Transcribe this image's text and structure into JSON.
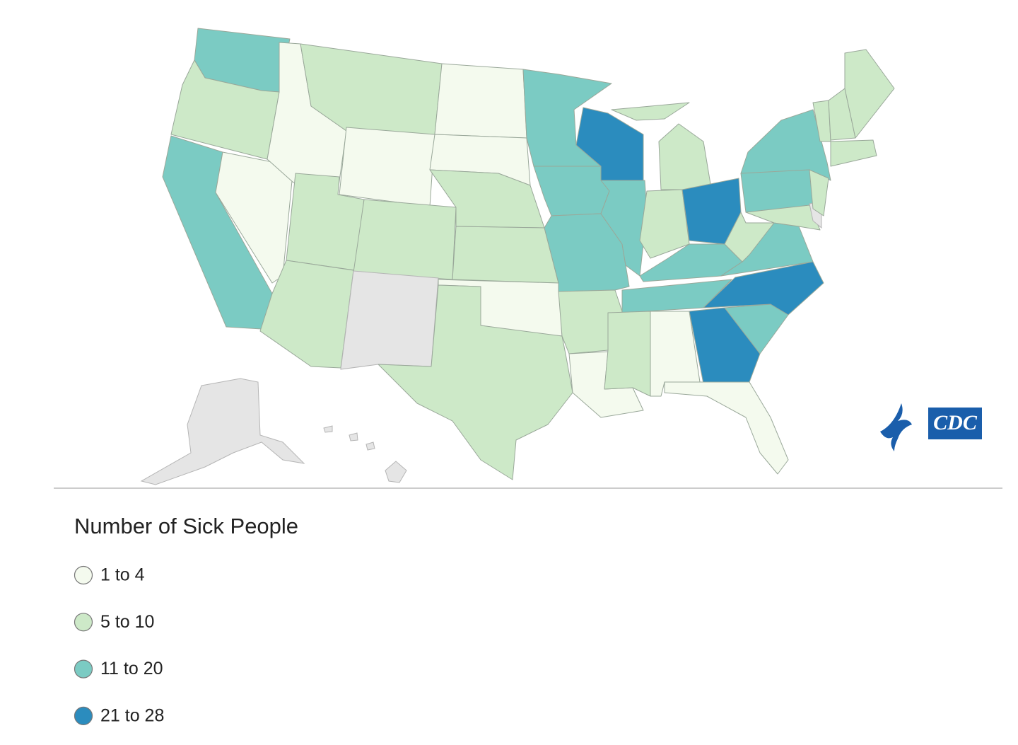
{
  "legend": {
    "title": "Number of Sick People",
    "items": [
      {
        "label": "1 to 4",
        "color": "#f4faee"
      },
      {
        "label": "5 to 10",
        "color": "#cde9c8"
      },
      {
        "label": "11 to 20",
        "color": "#7bcbc3"
      },
      {
        "label": "21 to 28",
        "color": "#2b8cbe"
      }
    ]
  },
  "logo": {
    "text": "CDC"
  }
}
